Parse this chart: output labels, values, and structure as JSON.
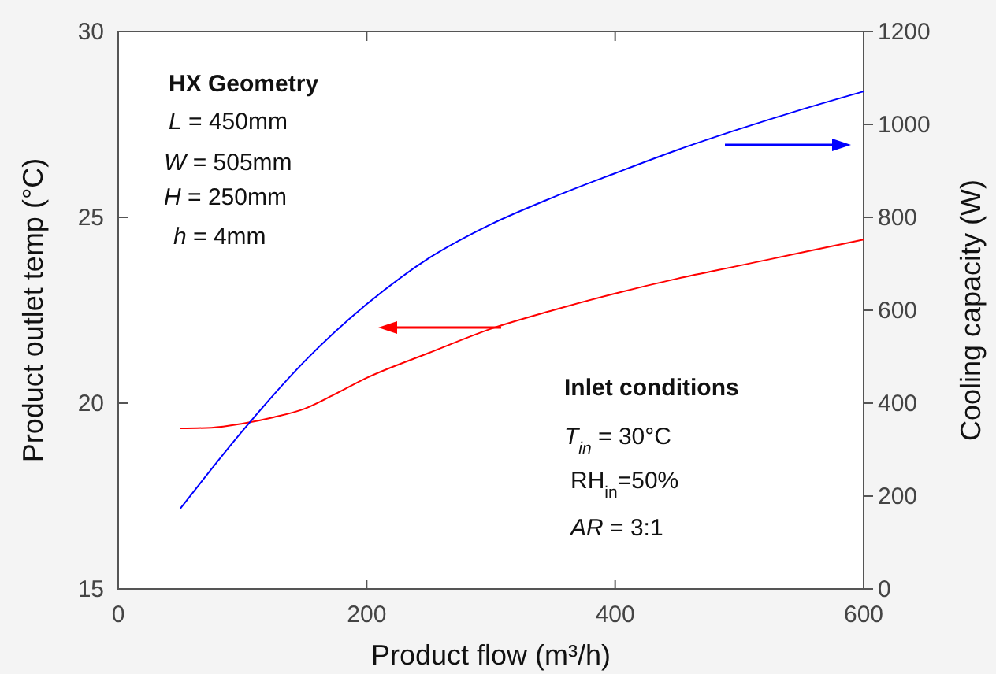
{
  "chart_data": {
    "type": "line",
    "xlabel": "Product flow (m³/h)",
    "ylabel": "Product outlet temp (°C)",
    "y2label": "Cooling capacity (W)",
    "xlim": [
      0,
      600
    ],
    "xticks": [
      0,
      200,
      400,
      600
    ],
    "ylim": [
      15,
      30
    ],
    "yticks": [
      15,
      20,
      25,
      30
    ],
    "y2lim": [
      0,
      1200
    ],
    "y2ticks": [
      0,
      200,
      400,
      600,
      800,
      1000,
      1200
    ],
    "grid": false,
    "series": [
      {
        "color": "#ff0000",
        "axis": "y",
        "x": [
          50,
          75,
          100,
          125,
          150,
          175,
          200,
          250,
          300,
          350,
          400,
          450,
          500,
          550,
          600
        ],
        "values": [
          19.32,
          19.34,
          19.45,
          19.62,
          19.85,
          20.25,
          20.68,
          21.35,
          22.0,
          22.5,
          22.95,
          23.35,
          23.7,
          24.05,
          24.4
        ]
      },
      {
        "color": "#0000ff",
        "axis": "y2",
        "x": [
          50,
          100,
          150,
          200,
          250,
          300,
          350,
          400,
          450,
          500,
          550,
          600
        ],
        "values": [
          173,
          340,
          490,
          613,
          712,
          785,
          843,
          895,
          945,
          990,
          1032,
          1071
        ]
      }
    ],
    "annotations": [
      "HX Geometry",
      "L = 450mm",
      "W = 505mm",
      "H = 250mm",
      "h = 4mm",
      "Inlet conditions",
      "T$_{in}$ = 30°C",
      "RH$_{in}$=50%",
      "AR = 3:1"
    ]
  }
}
